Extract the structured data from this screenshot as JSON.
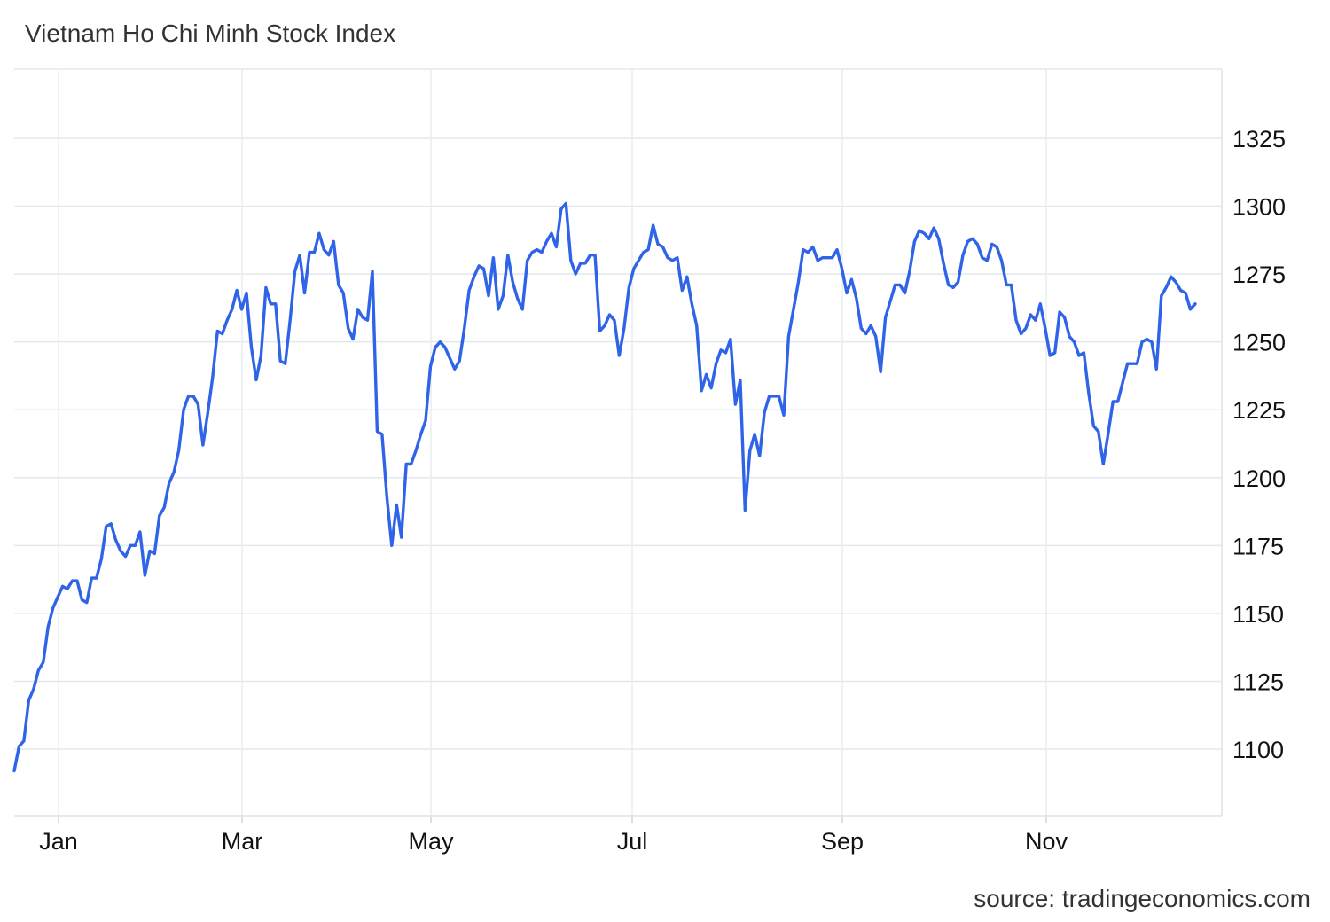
{
  "title": "Vietnam Ho Chi Minh Stock Index",
  "source": "source: tradingeconomics.com",
  "chart_data": {
    "type": "line",
    "title": "Vietnam Ho Chi Minh Stock Index",
    "xlabel": "",
    "ylabel": "",
    "grid": true,
    "legend": "none",
    "line_color": "#2f63e8",
    "x_ticks": [
      "Jan",
      "Mar",
      "May",
      "Jul",
      "Sep",
      "Nov"
    ],
    "y_ticks": [
      1100,
      1125,
      1150,
      1175,
      1200,
      1225,
      1250,
      1275,
      1300,
      1325
    ],
    "ylim": [
      1075,
      1350
    ],
    "series": [
      {
        "values": [
          1092,
          1101,
          1103,
          1118,
          1122,
          1129,
          1132,
          1145,
          1152,
          1156,
          1160,
          1159,
          1162,
          1162,
          1155,
          1154,
          1163,
          1163,
          1170,
          1182,
          1183,
          1177,
          1173,
          1171,
          1175,
          1175,
          1180,
          1164,
          1173,
          1172,
          1186,
          1189,
          1198,
          1202,
          1210,
          1225,
          1230,
          1230,
          1227,
          1212,
          1224,
          1237,
          1254,
          1253,
          1258,
          1262,
          1269,
          1262,
          1268,
          1248,
          1236,
          1245,
          1270,
          1264,
          1264,
          1243,
          1242,
          1258,
          1276,
          1282,
          1268,
          1283,
          1283,
          1290,
          1284,
          1282,
          1287,
          1271,
          1268,
          1255,
          1251,
          1262,
          1259,
          1258,
          1276,
          1217,
          1216,
          1193,
          1175,
          1190,
          1178,
          1205,
          1205,
          1210,
          1216,
          1221,
          1241,
          1248,
          1250,
          1248,
          1244,
          1240,
          1243,
          1255,
          1269,
          1274,
          1278,
          1277,
          1267,
          1281,
          1262,
          1267,
          1282,
          1272,
          1266,
          1262,
          1280,
          1283,
          1284,
          1283,
          1287,
          1290,
          1285,
          1299,
          1301,
          1280,
          1275,
          1279,
          1279,
          1282,
          1282,
          1254,
          1256,
          1260,
          1258,
          1245,
          1255,
          1270,
          1277,
          1280,
          1283,
          1284,
          1293,
          1286,
          1285,
          1281,
          1280,
          1281,
          1269,
          1274,
          1264,
          1256,
          1232,
          1238,
          1233,
          1242,
          1247,
          1246,
          1251,
          1227,
          1236,
          1188,
          1210,
          1216,
          1208,
          1224,
          1230,
          1230,
          1230,
          1223,
          1252,
          1262,
          1272,
          1284,
          1283,
          1285,
          1280,
          1281,
          1281,
          1281,
          1284,
          1277,
          1268,
          1273,
          1266,
          1255,
          1253,
          1256,
          1252,
          1239,
          1259,
          1265,
          1271,
          1271,
          1268,
          1276,
          1287,
          1291,
          1290,
          1288,
          1292,
          1288,
          1279,
          1271,
          1270,
          1272,
          1282,
          1287,
          1288,
          1286,
          1281,
          1280,
          1286,
          1285,
          1280,
          1271,
          1271,
          1258,
          1253,
          1255,
          1260,
          1258,
          1264,
          1255,
          1245,
          1246,
          1261,
          1259,
          1252,
          1250,
          1245,
          1246,
          1231,
          1219,
          1217,
          1205,
          1216,
          1228,
          1228,
          1235,
          1242,
          1242,
          1242,
          1250,
          1251,
          1250,
          1240,
          1267,
          1270,
          1274,
          1272,
          1269,
          1268,
          1262,
          1264
        ]
      }
    ]
  }
}
